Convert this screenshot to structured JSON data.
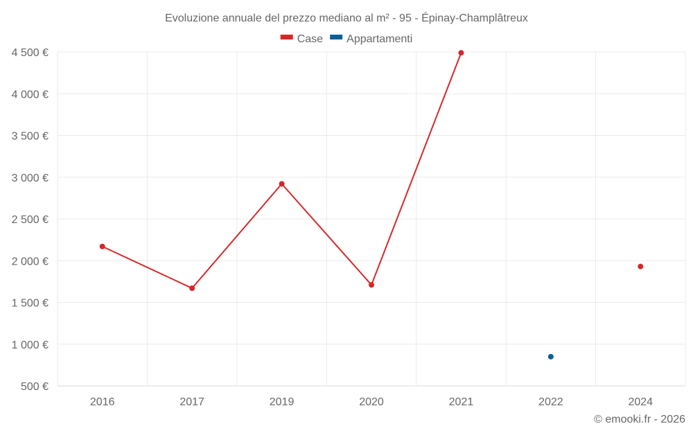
{
  "chart_data": {
    "type": "line",
    "title": "Evoluzione annuale del prezzo mediano al m² - 95 - Épinay-Champlâtreux",
    "categories": [
      "2016",
      "2017",
      "2019",
      "2020",
      "2021",
      "2022",
      "2024"
    ],
    "series": [
      {
        "name": "Case",
        "color": "#d62728",
        "values": [
          2170,
          1670,
          2920,
          1710,
          4490,
          null,
          1930
        ]
      },
      {
        "name": "Appartamenti",
        "color": "#0b5f99",
        "values": [
          null,
          null,
          null,
          null,
          null,
          850,
          null
        ]
      }
    ],
    "ylim": [
      500,
      4500
    ],
    "yticks": [
      500,
      1000,
      1500,
      2000,
      2500,
      3000,
      3500,
      4000,
      4500
    ],
    "ytick_labels": [
      "500 €",
      "1 000 €",
      "1 500 €",
      "2 000 €",
      "2 500 €",
      "3 000 €",
      "3 500 €",
      "4 000 €",
      "4 500 €"
    ],
    "xlabel": "",
    "ylabel": "",
    "grid": true,
    "legend": "top-center"
  },
  "credit": "© emooki.fr - 2026"
}
